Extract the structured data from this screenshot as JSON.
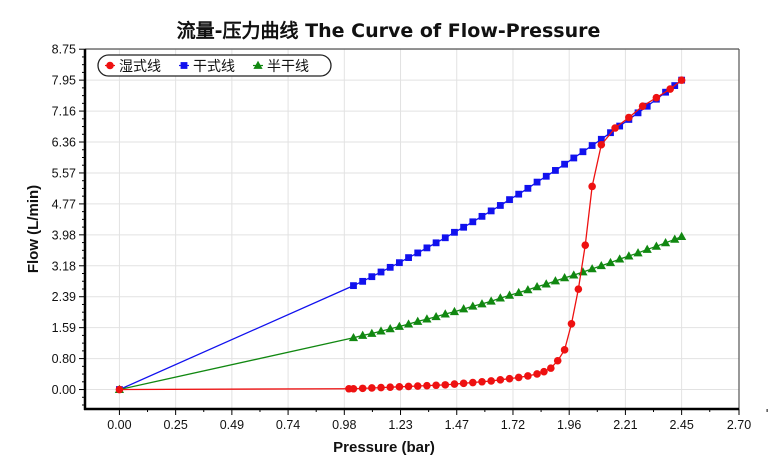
{
  "chart_data": {
    "type": "line",
    "title": "流量-压力曲线 The Curve of Flow-Pressure",
    "xlabel": "Pressure (bar)",
    "ylabel": "Flow (L/min)",
    "xlim": [
      -0.15,
      2.7
    ],
    "ylim": [
      -0.5,
      8.75
    ],
    "grid": true,
    "legend_position": "top-left",
    "x_ticks": [
      "0.00",
      "0.25",
      "0.49",
      "0.74",
      "0.98",
      "1.23",
      "1.47",
      "1.72",
      "1.96",
      "2.21",
      "2.45",
      "2.70"
    ],
    "x_tick_values": [
      0,
      0.245,
      0.49,
      0.735,
      0.98,
      1.225,
      1.47,
      1.715,
      1.96,
      2.205,
      2.45,
      2.7
    ],
    "y_ticks": [
      "0.00",
      "0.80",
      "1.59",
      "2.39",
      "3.18",
      "3.98",
      "4.77",
      "5.57",
      "6.36",
      "7.16",
      "7.95",
      "8.75"
    ],
    "y_tick_values": [
      0,
      0.795,
      1.59,
      2.385,
      3.18,
      3.975,
      4.77,
      5.565,
      6.36,
      7.155,
      7.95,
      8.745
    ],
    "series": [
      {
        "name": "湿式线",
        "color": "#ee1111",
        "marker": "circle",
        "x": [
          0,
          1.0,
          1.02,
          1.06,
          1.1,
          1.14,
          1.18,
          1.22,
          1.26,
          1.3,
          1.34,
          1.38,
          1.42,
          1.46,
          1.5,
          1.54,
          1.58,
          1.62,
          1.66,
          1.7,
          1.74,
          1.78,
          1.82,
          1.85,
          1.88,
          1.91,
          1.94,
          1.97,
          2.0,
          2.03,
          2.06,
          2.1,
          2.16,
          2.22,
          2.28,
          2.34,
          2.4,
          2.45
        ],
        "y": [
          0,
          0.02,
          0.02,
          0.03,
          0.04,
          0.05,
          0.06,
          0.07,
          0.08,
          0.09,
          0.1,
          0.11,
          0.12,
          0.14,
          0.16,
          0.18,
          0.2,
          0.22,
          0.25,
          0.28,
          0.31,
          0.35,
          0.4,
          0.46,
          0.55,
          0.74,
          1.02,
          1.69,
          2.58,
          3.71,
          5.22,
          6.29,
          6.72,
          6.99,
          7.28,
          7.5,
          7.72,
          7.95
        ]
      },
      {
        "name": "干式线",
        "color": "#1111ee",
        "marker": "square",
        "x": [
          0,
          1.02,
          1.06,
          1.1,
          1.14,
          1.18,
          1.22,
          1.26,
          1.3,
          1.34,
          1.38,
          1.42,
          1.46,
          1.5,
          1.54,
          1.58,
          1.62,
          1.66,
          1.7,
          1.74,
          1.78,
          1.82,
          1.86,
          1.9,
          1.94,
          1.98,
          2.02,
          2.06,
          2.1,
          2.14,
          2.18,
          2.22,
          2.26,
          2.3,
          2.34,
          2.38,
          2.42,
          2.45
        ],
        "y": [
          0,
          2.67,
          2.78,
          2.9,
          3.02,
          3.14,
          3.26,
          3.39,
          3.51,
          3.64,
          3.77,
          3.9,
          4.04,
          4.17,
          4.31,
          4.45,
          4.59,
          4.73,
          4.88,
          5.02,
          5.17,
          5.33,
          5.48,
          5.63,
          5.79,
          5.95,
          6.11,
          6.27,
          6.43,
          6.6,
          6.77,
          6.94,
          7.11,
          7.28,
          7.46,
          7.64,
          7.81,
          7.95
        ]
      },
      {
        "name": "半干线",
        "color": "#118811",
        "marker": "triangle",
        "x": [
          0,
          1.02,
          1.06,
          1.1,
          1.14,
          1.18,
          1.22,
          1.26,
          1.3,
          1.34,
          1.38,
          1.42,
          1.46,
          1.5,
          1.54,
          1.58,
          1.62,
          1.66,
          1.7,
          1.74,
          1.78,
          1.82,
          1.86,
          1.9,
          1.94,
          1.98,
          2.02,
          2.06,
          2.1,
          2.14,
          2.18,
          2.22,
          2.26,
          2.3,
          2.34,
          2.38,
          2.42,
          2.45
        ],
        "y": [
          0,
          1.33,
          1.39,
          1.44,
          1.5,
          1.56,
          1.62,
          1.68,
          1.75,
          1.81,
          1.87,
          1.94,
          2.0,
          2.07,
          2.14,
          2.2,
          2.27,
          2.35,
          2.42,
          2.49,
          2.56,
          2.64,
          2.71,
          2.79,
          2.87,
          2.94,
          3.02,
          3.1,
          3.18,
          3.26,
          3.35,
          3.43,
          3.51,
          3.6,
          3.68,
          3.77,
          3.86,
          3.93
        ]
      }
    ]
  }
}
